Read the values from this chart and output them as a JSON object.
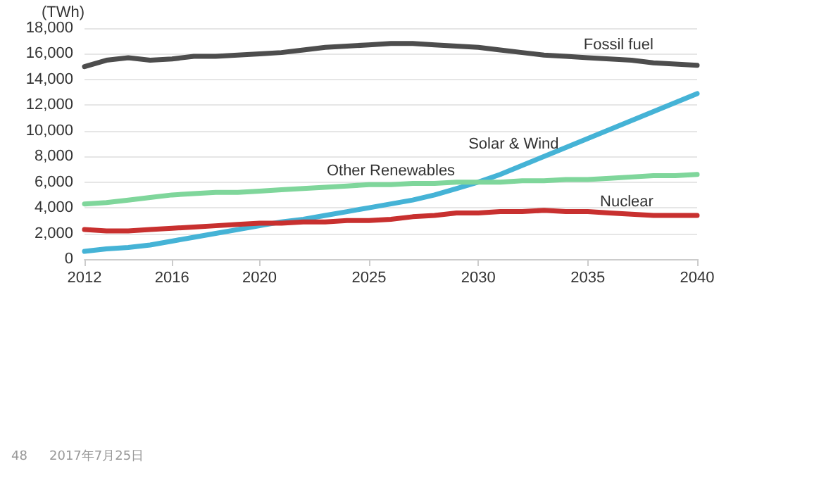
{
  "chart_data": {
    "type": "line",
    "ylabel": "(TWh)",
    "x": [
      2012,
      2013,
      2014,
      2015,
      2016,
      2017,
      2018,
      2019,
      2020,
      2021,
      2022,
      2023,
      2024,
      2025,
      2026,
      2027,
      2028,
      2029,
      2030,
      2031,
      2032,
      2033,
      2034,
      2035,
      2036,
      2037,
      2038,
      2039,
      2040
    ],
    "series": [
      {
        "name": "Fossil fuel",
        "color": "#4d4d4d",
        "values": [
          15000,
          15500,
          15700,
          15500,
          15600,
          15800,
          15800,
          15900,
          16000,
          16100,
          16300,
          16500,
          16600,
          16700,
          16800,
          16800,
          16700,
          16600,
          16500,
          16300,
          16100,
          15900,
          15800,
          15700,
          15600,
          15500,
          15300,
          15200,
          15100
        ]
      },
      {
        "name": "Solar & Wind",
        "color": "#45b3d6",
        "values": [
          600,
          800,
          900,
          1100,
          1400,
          1700,
          2000,
          2300,
          2600,
          2900,
          3100,
          3400,
          3700,
          4000,
          4300,
          4600,
          5000,
          5500,
          6000,
          6600,
          7300,
          8000,
          8700,
          9400,
          10100,
          10800,
          11500,
          12200,
          12900
        ]
      },
      {
        "name": "Other Renewables",
        "color": "#7fd69b",
        "values": [
          4300,
          4400,
          4600,
          4800,
          5000,
          5100,
          5200,
          5200,
          5300,
          5400,
          5500,
          5600,
          5700,
          5800,
          5800,
          5900,
          5900,
          6000,
          6000,
          6000,
          6100,
          6100,
          6200,
          6200,
          6300,
          6400,
          6500,
          6500,
          6600
        ]
      },
      {
        "name": "Nuclear",
        "color": "#c8302f",
        "values": [
          2300,
          2200,
          2200,
          2300,
          2400,
          2500,
          2600,
          2700,
          2800,
          2800,
          2900,
          2900,
          3000,
          3000,
          3100,
          3300,
          3400,
          3600,
          3600,
          3700,
          3700,
          3800,
          3700,
          3700,
          3600,
          3500,
          3400,
          3400,
          3400
        ]
      }
    ],
    "xlim": [
      2012,
      2040
    ],
    "xticks": [
      2012,
      2016,
      2020,
      2025,
      2030,
      2035,
      2040
    ],
    "ylim": [
      0,
      18000
    ],
    "yticks": [
      0,
      {
        "value": 2000,
        "label": "2,000"
      },
      {
        "value": 4000,
        "label": "4,000"
      },
      {
        "value": 6000,
        "label": "6,000"
      },
      {
        "value": 8000,
        "label": "8,000"
      },
      {
        "value": 10000,
        "label": "10,000"
      },
      {
        "value": 12000,
        "label": "12,000"
      },
      {
        "value": 14000,
        "label": "14,000"
      },
      {
        "value": 16000,
        "label": "16,000"
      },
      {
        "value": 18000,
        "label": "18,000"
      }
    ],
    "grid": "y",
    "legend": false,
    "marker": "none",
    "line_style": "solid",
    "annotations": [
      "48",
      "2017年7月25日"
    ]
  }
}
